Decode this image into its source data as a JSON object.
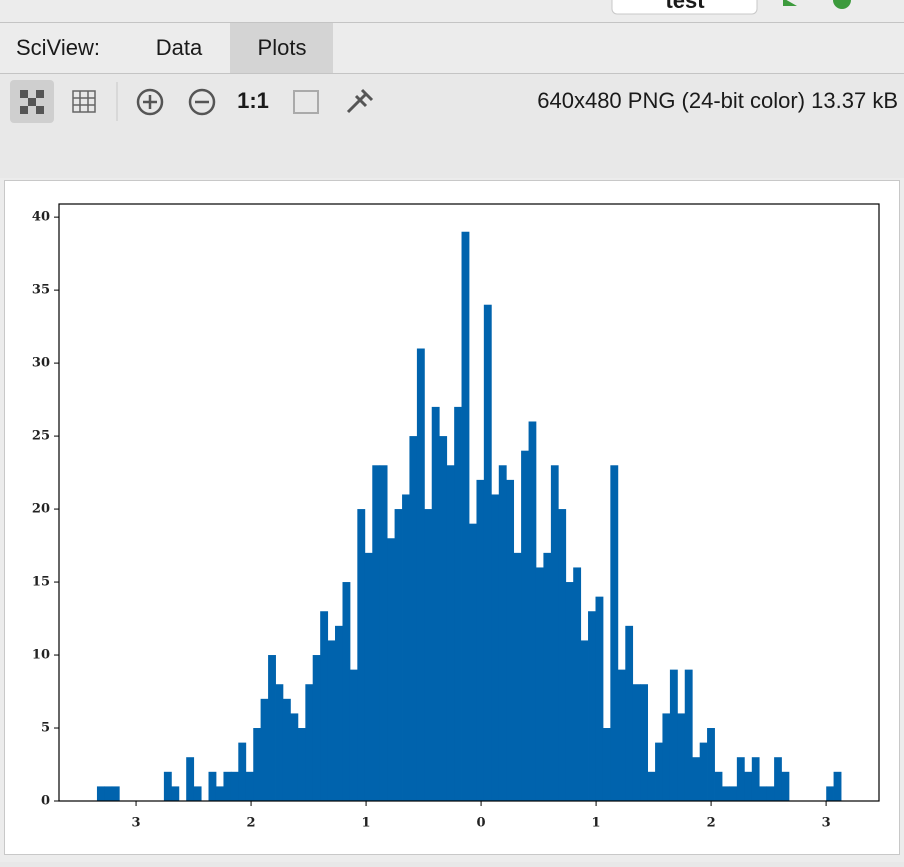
{
  "ui": {
    "top_button": "test",
    "tab_label": "SciView:",
    "tabs": [
      "Data",
      "Plots"
    ],
    "zoom_label": "1:1",
    "image_info": "640x480 PNG (24-bit color) 13.37 kB"
  },
  "chart_data": {
    "type": "histogram",
    "color": "#0063ad",
    "bins": [
      -3.34,
      -3.275,
      -3.211,
      -3.146,
      -3.081,
      -3.017,
      -2.952,
      -2.887,
      -2.822,
      -2.758,
      -2.693,
      -2.628,
      -2.564,
      -2.499,
      -2.434,
      -2.37,
      -2.305,
      -2.24,
      -2.175,
      -2.111,
      -2.046,
      -1.981,
      -1.917,
      -1.852,
      -1.787,
      -1.723,
      -1.658,
      -1.593,
      -1.528,
      -1.464,
      -1.399,
      -1.334,
      -1.27,
      -1.205,
      -1.14,
      -1.076,
      -1.011,
      -0.946,
      -0.881,
      -0.817,
      -0.752,
      -0.687,
      -0.623,
      -0.558,
      -0.493,
      -0.429,
      -0.364,
      -0.299,
      -0.234,
      -0.17,
      -0.105,
      -0.04,
      0.024,
      0.089,
      0.154,
      0.219,
      0.283,
      0.348,
      0.413,
      0.477,
      0.542,
      0.607,
      0.671,
      0.736,
      0.801,
      0.866,
      0.93,
      0.995,
      1.06,
      1.124,
      1.189,
      1.254,
      1.318,
      1.383,
      1.448,
      1.513,
      1.577,
      1.642,
      1.707,
      1.771,
      1.836,
      1.901,
      1.965,
      2.03,
      2.095,
      2.16,
      2.224,
      2.289,
      2.354,
      2.418,
      2.483,
      2.548,
      2.612,
      2.677,
      2.742,
      2.807,
      2.871,
      2.936,
      3.001,
      3.065,
      3.13
    ],
    "values": [
      1,
      1,
      1,
      0,
      0,
      0,
      0,
      0,
      0,
      2,
      1,
      0,
      3,
      1,
      0,
      2,
      1,
      2,
      2,
      4,
      2,
      5,
      7,
      10,
      8,
      7,
      6,
      5,
      8,
      10,
      13,
      11,
      12,
      15,
      9,
      20,
      17,
      23,
      23,
      18,
      20,
      21,
      25,
      31,
      20,
      27,
      25,
      23,
      27,
      39,
      19,
      22,
      34,
      21,
      23,
      22,
      17,
      24,
      26,
      16,
      17,
      23,
      20,
      15,
      16,
      11,
      13,
      14,
      5,
      23,
      9,
      12,
      8,
      8,
      2,
      4,
      6,
      9,
      6,
      9,
      3,
      4,
      5,
      2,
      1,
      1,
      3,
      2,
      3,
      1,
      1,
      3,
      2,
      0,
      0,
      0,
      0,
      0,
      1,
      2
    ],
    "xlim": [
      -3.67,
      3.46
    ],
    "ylim": [
      0,
      40.9
    ],
    "xticks": [
      {
        "value": -3,
        "label": "3"
      },
      {
        "value": -2,
        "label": "2"
      },
      {
        "value": -1,
        "label": "1"
      },
      0,
      1,
      2,
      3
    ],
    "yticks": [
      0,
      5,
      10,
      15,
      20,
      25,
      30,
      35,
      40
    ]
  }
}
